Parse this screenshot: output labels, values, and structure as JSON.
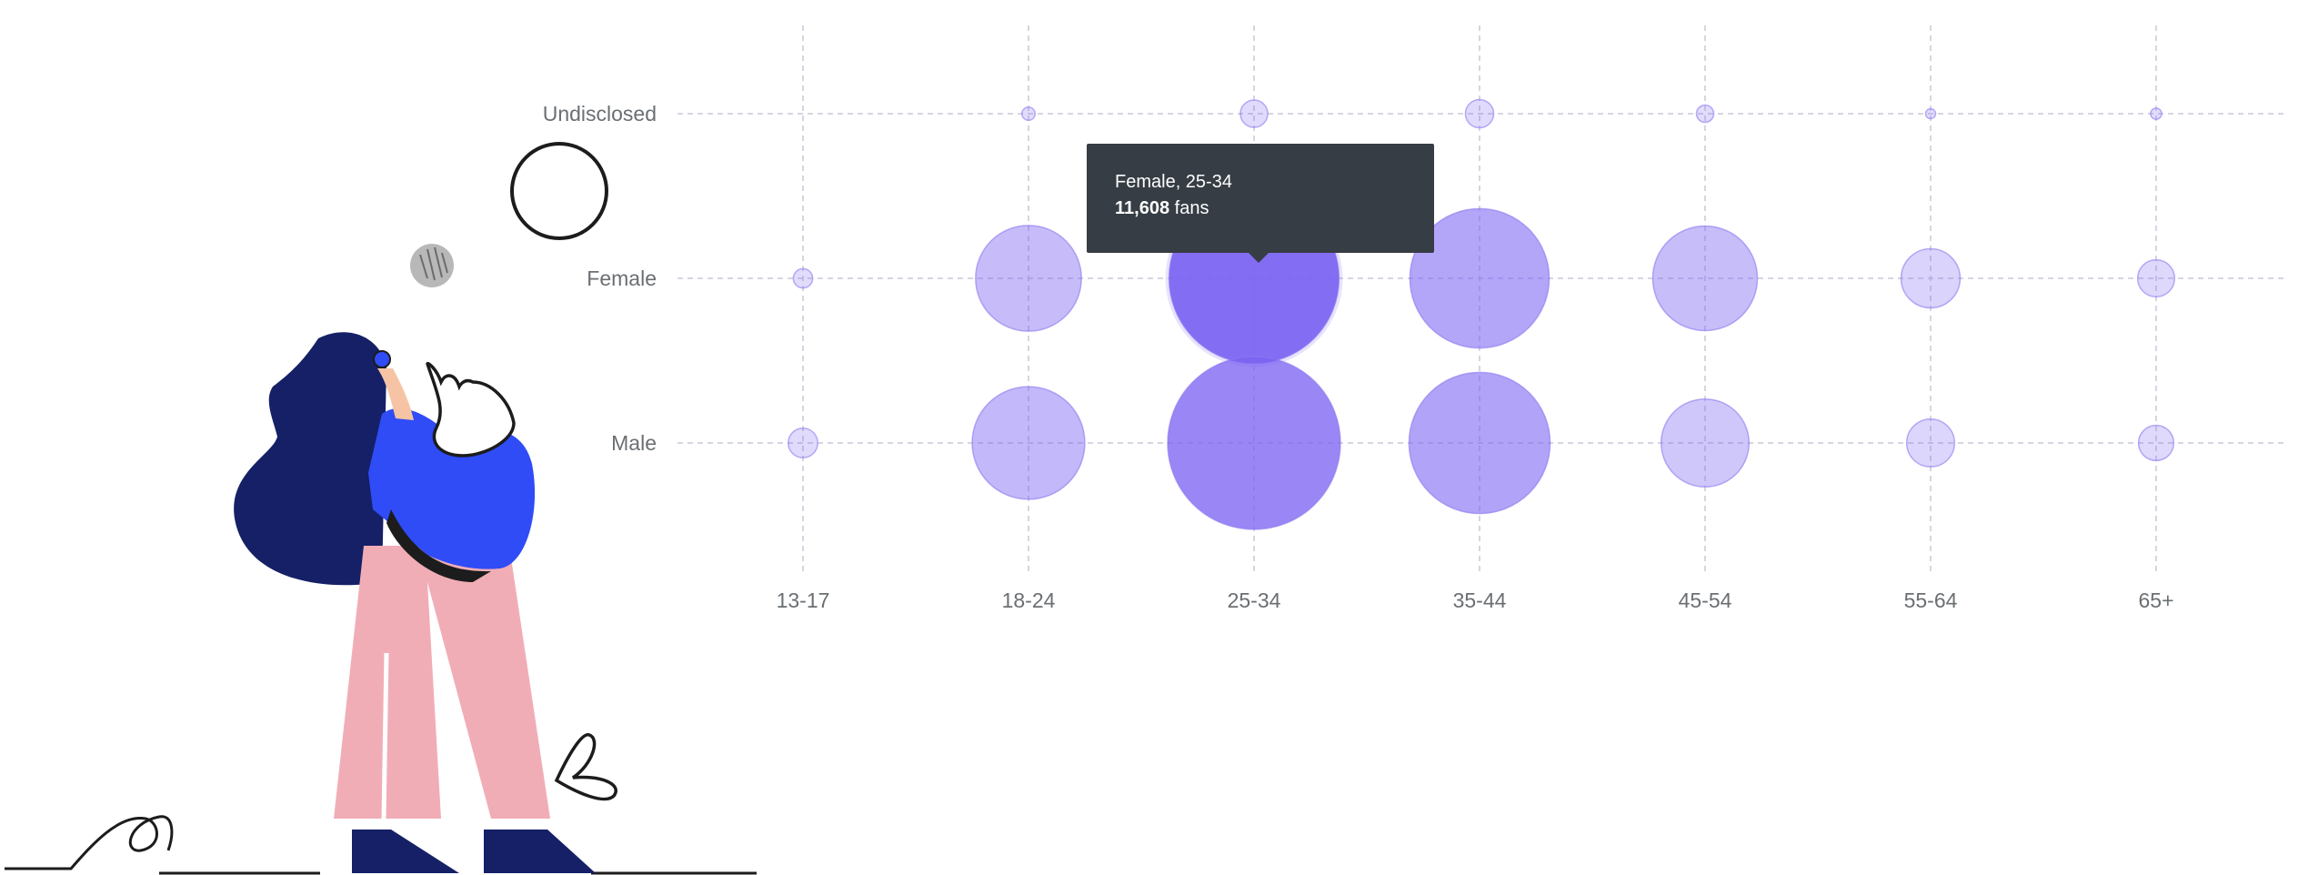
{
  "chart_data": {
    "type": "bubble",
    "title": "",
    "categories": [
      "13-17",
      "18-24",
      "25-34",
      "35-44",
      "45-54",
      "55-64",
      "65+"
    ],
    "rows": [
      "Undisclosed",
      "Female",
      "Male"
    ],
    "series": [
      {
        "name": "Undisclosed",
        "values": [
          0,
          70,
          300,
          320,
          120,
          40,
          50
        ]
      },
      {
        "name": "Female",
        "values": [
          150,
          4500,
          11608,
          7800,
          4400,
          1400,
          550
        ]
      },
      {
        "name": "Male",
        "values": [
          350,
          5100,
          12000,
          8000,
          3100,
          920,
          500
        ]
      }
    ],
    "size_max_value": 12000,
    "grid": true,
    "colors": {
      "bubble_fill": "#7b63f2",
      "bubble_stroke": "#8b78f0",
      "grid": "#c9c9d9",
      "label": "#6a6f73"
    },
    "tooltip": {
      "title": "Female, 25-34",
      "value": "11,608",
      "unit": "fans",
      "highlight_row": "Female",
      "highlight_category": "25-34"
    }
  },
  "illustration": {
    "icon": "woman-waving-illustration-icon",
    "colors": {
      "hair": "#152066",
      "shirt": "#2f4cf7",
      "pants": "#f1adb6",
      "shoes": "#152066",
      "skin": "#f6c4a4",
      "outline": "#1c1c1c"
    }
  }
}
